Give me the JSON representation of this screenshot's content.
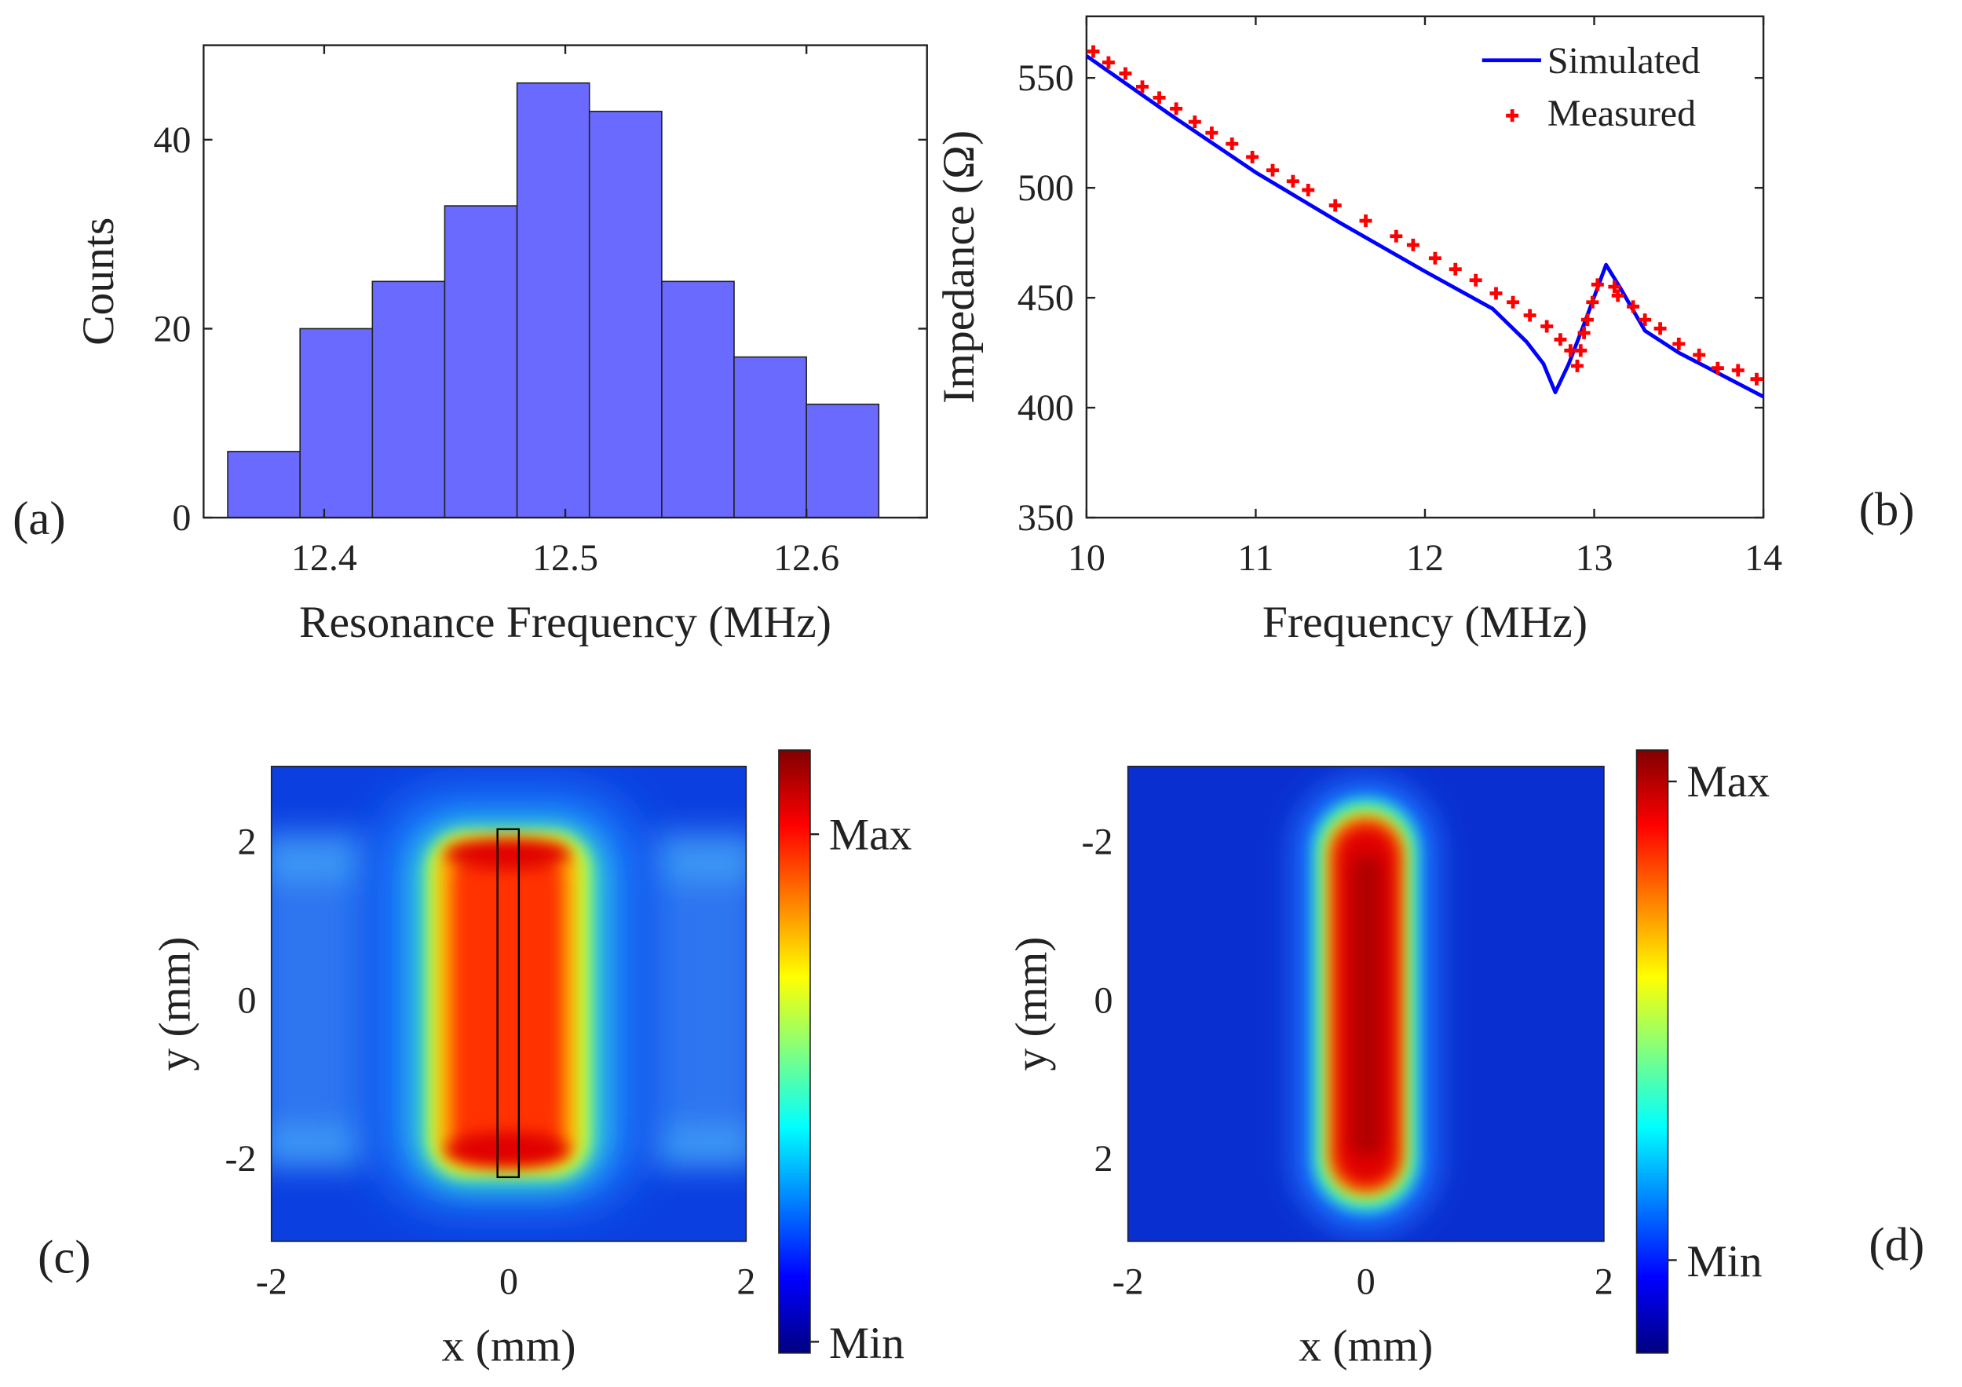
{
  "chart_data": [
    {
      "panel": "(a)",
      "type": "bar",
      "xlabel": "Resonance Frequency (MHz)",
      "ylabel": "Counts",
      "xlim": [
        12.35,
        12.65
      ],
      "ylim": [
        0,
        50
      ],
      "xticks": [
        "12.4",
        "12.5",
        "12.6"
      ],
      "xtick_values": [
        12.4,
        12.5,
        12.6
      ],
      "yticks": [
        "0",
        "20",
        "40"
      ],
      "ytick_values": [
        0,
        20,
        40
      ],
      "bin_edges": [
        12.36,
        12.39,
        12.42,
        12.45,
        12.48,
        12.51,
        12.54,
        12.57,
        12.6,
        12.63
      ],
      "values": [
        7,
        20,
        25,
        33,
        46,
        43,
        25,
        17,
        12
      ],
      "bar_color": "#6a6aff"
    },
    {
      "panel": "(b)",
      "type": "line",
      "xlabel": "Frequency (MHz)",
      "ylabel": "Impedance (Ω)",
      "xlim": [
        10,
        14
      ],
      "ylim": [
        350,
        578
      ],
      "xticks": [
        "10",
        "11",
        "12",
        "13",
        "14"
      ],
      "xtick_values": [
        10,
        11,
        12,
        13,
        14
      ],
      "yticks": [
        "350",
        "400",
        "450",
        "500",
        "550"
      ],
      "ytick_values": [
        350,
        400,
        450,
        500,
        550
      ],
      "legend_position": "top-right",
      "series": [
        {
          "name": "Simulated",
          "style": "line",
          "color": "#0000ff",
          "x": [
            10,
            10.5,
            11,
            11.5,
            12,
            12.4,
            12.6,
            12.7,
            12.77,
            12.85,
            12.95,
            13.07,
            13.15,
            13.3,
            13.5,
            14
          ],
          "y": [
            560,
            533,
            507,
            484,
            462,
            445,
            430,
            420,
            407,
            420,
            440,
            465,
            455,
            435,
            425,
            405
          ]
        },
        {
          "name": "Measured",
          "style": "plus",
          "color": "#ff0000",
          "x": [
            10.04,
            10.13,
            10.23,
            10.33,
            10.43,
            10.53,
            10.64,
            10.74,
            10.86,
            10.98,
            11.1,
            11.22,
            11.31,
            11.47,
            11.65,
            11.83,
            11.93,
            12.06,
            12.18,
            12.3,
            12.42,
            12.52,
            12.62,
            12.72,
            12.8,
            12.86,
            12.9,
            12.92,
            12.94,
            12.96,
            12.99,
            13.02,
            13.12,
            13.14,
            13.23,
            13.3,
            13.39,
            13.5,
            13.62,
            13.73,
            13.85,
            13.96
          ],
          "y": [
            562,
            557,
            552,
            546,
            541,
            536,
            530,
            525,
            520,
            514,
            508,
            503,
            499,
            492,
            485,
            478,
            474,
            468,
            463,
            458,
            452,
            448,
            442,
            437,
            431,
            426,
            419,
            426,
            434,
            440,
            448,
            456,
            455,
            451,
            446,
            440,
            436,
            429,
            424,
            418,
            417,
            413
          ]
        }
      ]
    },
    {
      "panel": "(c)",
      "type": "heatmap",
      "xlabel": "x (mm)",
      "ylabel": "y (mm)",
      "xlim": [
        -2,
        2
      ],
      "ylim": [
        -3,
        3
      ],
      "xticks": [
        "-2",
        "0",
        "2"
      ],
      "yticks": [
        "2",
        "0",
        "-2"
      ],
      "colorbar": {
        "colormap": "jet",
        "max_label": "Max",
        "min_label": "Min"
      }
    },
    {
      "panel": "(d)",
      "type": "heatmap",
      "xlabel": "x (mm)",
      "ylabel": "y (mm)",
      "xlim": [
        -2,
        2
      ],
      "ylim": [
        3,
        -3
      ],
      "xticks": [
        "-2",
        "0",
        "2"
      ],
      "yticks": [
        "-2",
        "0",
        "2"
      ],
      "colorbar": {
        "colormap": "jet",
        "max_label": "Max",
        "min_label": "Min"
      }
    }
  ]
}
